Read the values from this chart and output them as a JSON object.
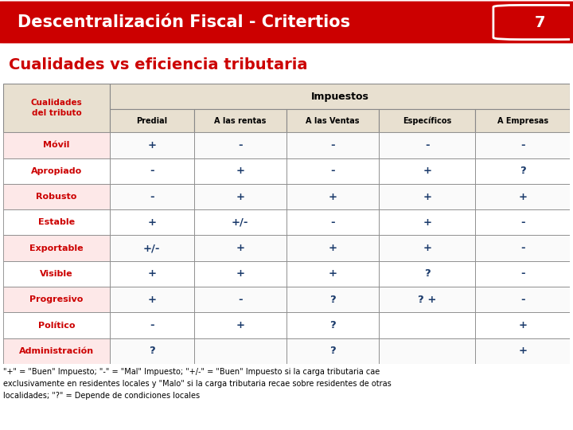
{
  "title": "Descentralización Fiscal - Critertios",
  "title_number": "7",
  "subtitle": "Cualidades vs eficiencia tributaria",
  "header_bg": "#cc0000",
  "header_fg": "#ffffff",
  "subtitle_fg": "#cc0000",
  "table_header_row1": "Impuestos",
  "table_header_row2": [
    "Predial",
    "A las rentas",
    "A las Ventas",
    "Específicos",
    "A Empresas"
  ],
  "row_labels": [
    "Móvil",
    "Apropiado",
    "Robusto",
    "Estable",
    "Exportable",
    "Visible",
    "Progresivo",
    "Político",
    "Administración"
  ],
  "table_data": [
    [
      "+",
      "-",
      "-",
      "-",
      "-"
    ],
    [
      "-",
      "+",
      "-",
      "+",
      "?"
    ],
    [
      "-",
      "+",
      "+",
      "+",
      "+"
    ],
    [
      "+",
      "+/-",
      "-",
      "+",
      "-"
    ],
    [
      "+/-",
      "+",
      "+",
      "+",
      "-"
    ],
    [
      "+",
      "+",
      "+",
      "?",
      "-"
    ],
    [
      "+",
      "-",
      "?",
      "? +",
      "-"
    ],
    [
      "-",
      "+",
      "?",
      "",
      "+"
    ],
    [
      "?",
      "",
      "?",
      "",
      "+"
    ]
  ],
  "row_label_bg_odd": "#fde8e8",
  "row_label_bg_even": "#ffffff",
  "row_label_fg": "#cc0000",
  "col_header_bg": "#e8e0d0",
  "col_header_fg": "#000000",
  "cell_odd_bg": "#fafafa",
  "cell_even_bg": "#ffffff",
  "cell_fg": "#1a3a6b",
  "table_border": "#aaaaaa",
  "footnote_line1": "\"+\" = \"Buen\" Impuesto; \"-\" = \"Mal\" Impuesto; \"+/-\" = \"Buen\" Impuesto si la carga tributaria cae",
  "footnote_line2": "exclusivamente en residentes locales y \"Malo\" si la carga tributaria recae sobre residentes de otras",
  "footnote_line3": "localidades; \"?\" = Depende de condiciones locales",
  "bg_color": "#ffffff"
}
